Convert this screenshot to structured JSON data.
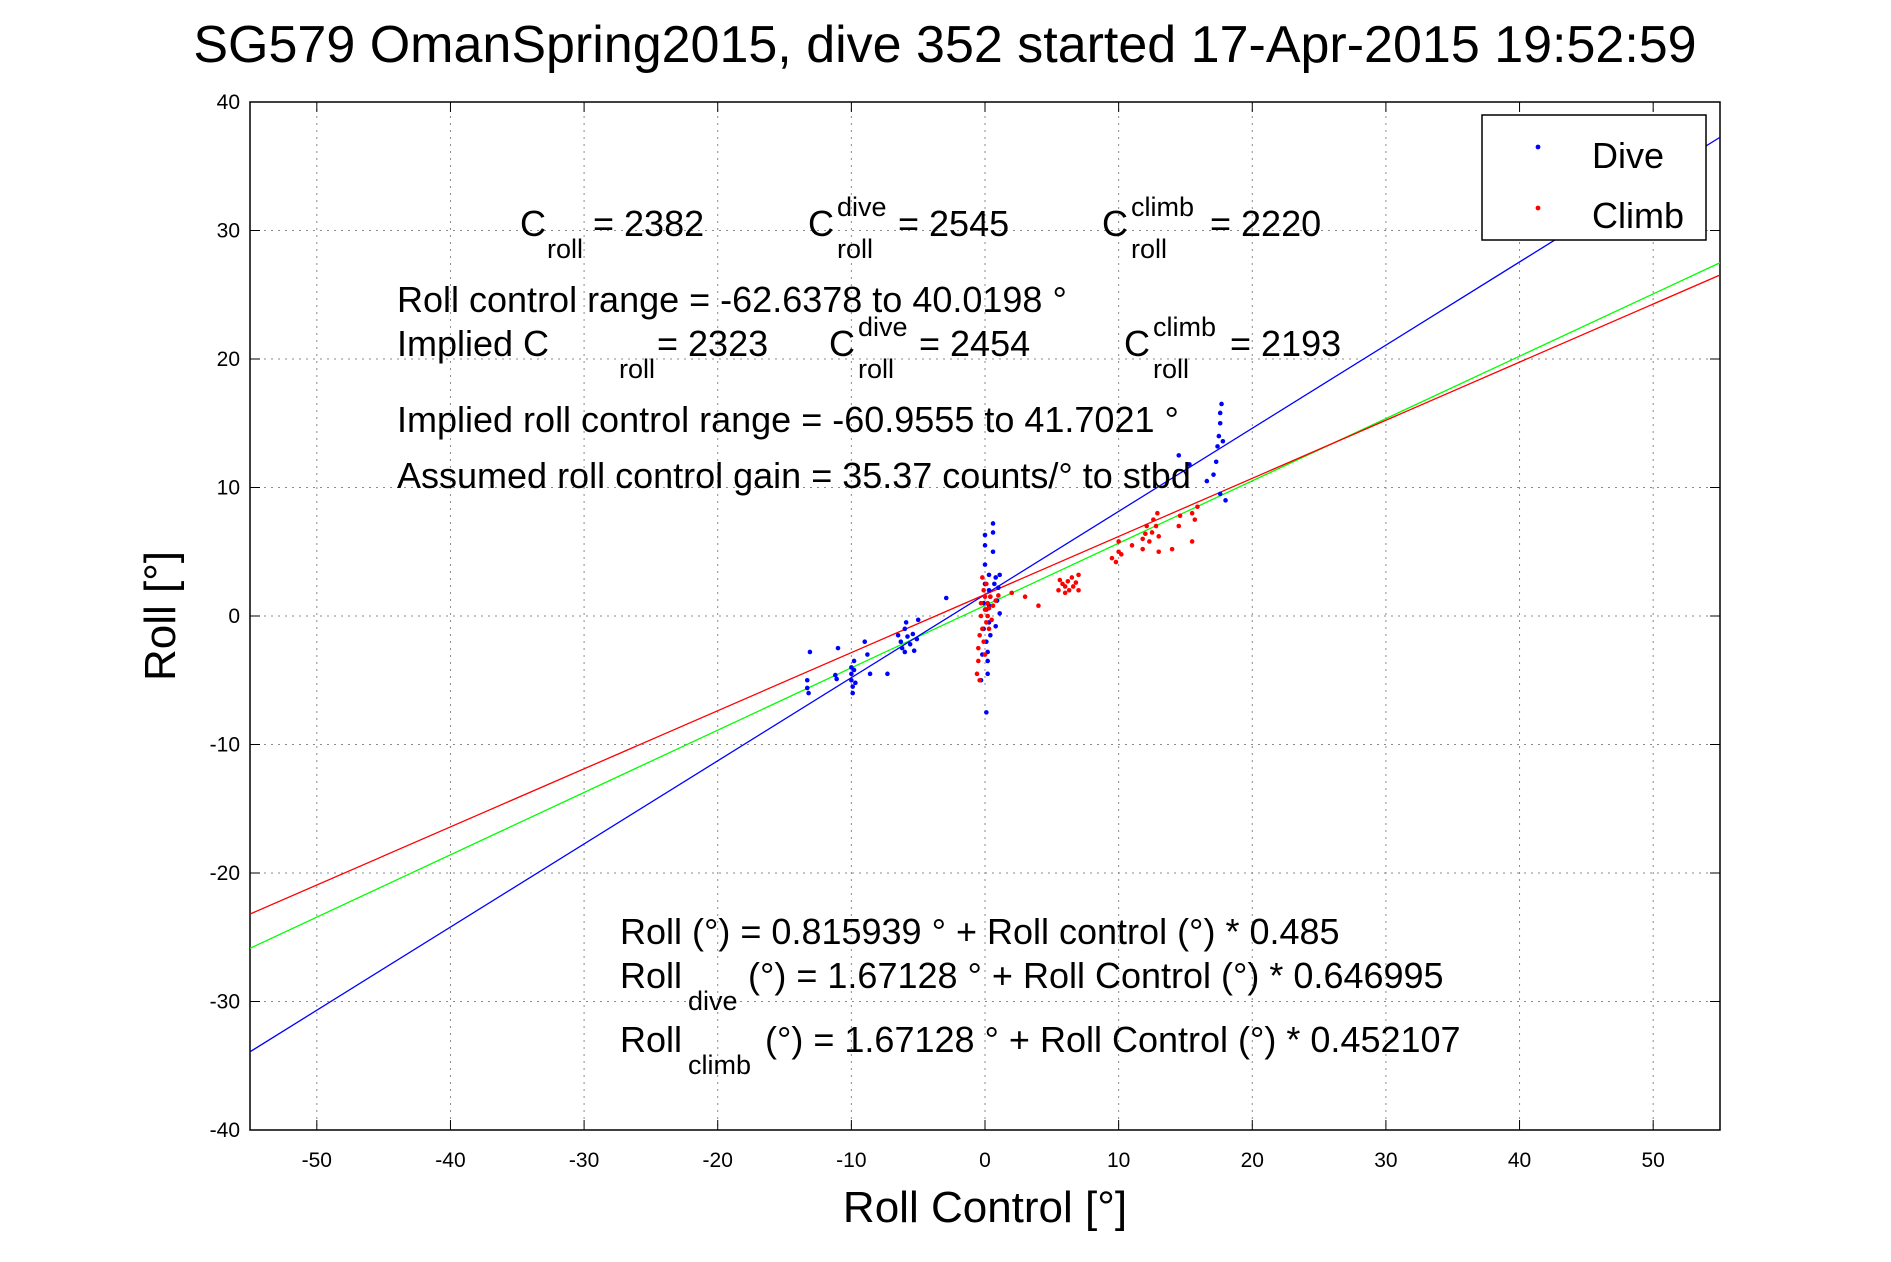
{
  "chart_data": {
    "type": "scatter",
    "title": "SG579 OmanSpring2015, dive 352 started 17-Apr-2015 19:52:59",
    "xlabel": "Roll Control [°]",
    "ylabel": "Roll [°]",
    "xlim": [
      -55,
      55
    ],
    "ylim": [
      -40,
      40
    ],
    "xticks": [
      -50,
      -40,
      -30,
      -20,
      -10,
      0,
      10,
      20,
      30,
      40,
      50
    ],
    "yticks": [
      -40,
      -30,
      -20,
      -10,
      0,
      10,
      20,
      30,
      40
    ],
    "grid": true,
    "legend_position": "top-right",
    "legend": [
      {
        "name": "Dive",
        "color": "#0000ff"
      },
      {
        "name": "Climb",
        "color": "#ff0000"
      }
    ],
    "annotations": {
      "c_roll": {
        "base": "C",
        "sub": "roll",
        "value": " = 2382"
      },
      "c_roll_dive": {
        "base": "C",
        "sup": "dive",
        "sub": "roll",
        "value": " = 2545"
      },
      "c_roll_climb": {
        "base": "C",
        "sup": "climb",
        "sub": "roll",
        "value": " = 2220"
      },
      "roll_control_range": "Roll control range = -62.6378 to 40.0198 °",
      "implied_prefix": "Implied C",
      "implied_sub": "roll",
      "implied_value": " = 2323",
      "implied_dive": {
        "base": "C",
        "sup": "dive",
        "sub": "roll",
        "value": " = 2454"
      },
      "implied_climb": {
        "base": "C",
        "sup": "climb",
        "sub": "roll",
        "value": " = 2193"
      },
      "implied_range": "Implied roll control range = -60.9555 to 41.7021 °",
      "gain": "Assumed roll control gain = 35.37 counts/° to stbd",
      "fit_all": "Roll (°) = 0.815939 ° + Roll control (°) * 0.485",
      "fit_dive_prefix": "Roll",
      "fit_dive_sub": "dive",
      "fit_dive_rest": " (°) = 1.67128 ° + Roll Control (°) * 0.646995",
      "fit_climb_prefix": "Roll",
      "fit_climb_sub": "climb",
      "fit_climb_rest": " (°) = 1.67128 ° + Roll Control (°) * 0.452107"
    },
    "fit_lines": [
      {
        "color": "#00ff00",
        "intercept": 0.815939,
        "slope": 0.485
      },
      {
        "color": "#0000ff",
        "intercept": 1.67128,
        "slope": 0.646995
      },
      {
        "color": "#ff0000",
        "intercept": 1.67128,
        "slope": 0.452107
      }
    ],
    "series": [
      {
        "name": "Dive",
        "color": "#0000ff",
        "points": [
          [
            -13.3,
            -5.0
          ],
          [
            -13.3,
            -5.6
          ],
          [
            -13.2,
            -6.0
          ],
          [
            -13.1,
            -2.8
          ],
          [
            -11.2,
            -4.6
          ],
          [
            -11.1,
            -4.9
          ],
          [
            -11.0,
            -2.5
          ],
          [
            -10.0,
            -4.0
          ],
          [
            -10.0,
            -4.5
          ],
          [
            -10.0,
            -5.0
          ],
          [
            -9.9,
            -5.5
          ],
          [
            -9.9,
            -6.0
          ],
          [
            -9.8,
            -3.5
          ],
          [
            -9.8,
            -4.2
          ],
          [
            -9.7,
            -5.2
          ],
          [
            -9.0,
            -2.0
          ],
          [
            -8.8,
            -3.0
          ],
          [
            -8.6,
            -4.5
          ],
          [
            -7.3,
            -4.5
          ],
          [
            -6.5,
            -1.5
          ],
          [
            -6.3,
            -2.0
          ],
          [
            -6.2,
            -2.5
          ],
          [
            -6.0,
            -1.0
          ],
          [
            -6.0,
            -2.8
          ],
          [
            -5.9,
            -0.5
          ],
          [
            -5.8,
            -1.6
          ],
          [
            -5.6,
            -2.2
          ],
          [
            -5.4,
            -1.4
          ],
          [
            -5.3,
            -2.7
          ],
          [
            -5.1,
            -1.8
          ],
          [
            -5.0,
            -0.3
          ],
          [
            -2.9,
            1.4
          ],
          [
            -0.3,
            -5.0
          ],
          [
            -0.2,
            -3.0
          ],
          [
            -0.1,
            -1.0
          ],
          [
            -0.1,
            1.0
          ],
          [
            0.0,
            2.5
          ],
          [
            0.0,
            4.0
          ],
          [
            0.0,
            5.5
          ],
          [
            0.0,
            6.3
          ],
          [
            0.1,
            -2.0
          ],
          [
            0.1,
            0.5
          ],
          [
            0.1,
            -7.5
          ],
          [
            0.2,
            -3.5
          ],
          [
            0.2,
            -4.5
          ],
          [
            0.2,
            -2.8
          ],
          [
            0.3,
            -0.5
          ],
          [
            0.3,
            0.8
          ],
          [
            0.3,
            2.0
          ],
          [
            0.3,
            3.2
          ],
          [
            0.4,
            1.5
          ],
          [
            0.4,
            -1.5
          ],
          [
            0.6,
            5.0
          ],
          [
            0.6,
            6.5
          ],
          [
            0.6,
            7.2
          ],
          [
            0.7,
            2.5
          ],
          [
            0.8,
            3.0
          ],
          [
            0.8,
            -0.8
          ],
          [
            0.9,
            1.2
          ],
          [
            1.0,
            2.2
          ],
          [
            1.1,
            3.2
          ],
          [
            1.1,
            0.2
          ],
          [
            14.5,
            12.5
          ],
          [
            15.3,
            11.8
          ],
          [
            16.6,
            10.5
          ],
          [
            17.1,
            11.0
          ],
          [
            17.3,
            12.0
          ],
          [
            17.4,
            13.2
          ],
          [
            17.5,
            14.0
          ],
          [
            17.6,
            15.0
          ],
          [
            17.6,
            15.8
          ],
          [
            17.7,
            16.5
          ],
          [
            17.8,
            13.6
          ],
          [
            18.0,
            9.0
          ],
          [
            17.6,
            9.5
          ]
        ]
      },
      {
        "name": "Climb",
        "color": "#ff0000",
        "points": [
          [
            -0.6,
            -4.5
          ],
          [
            -0.5,
            -3.5
          ],
          [
            -0.5,
            -2.5
          ],
          [
            -0.4,
            -5.0
          ],
          [
            -0.4,
            -1.5
          ],
          [
            -0.3,
            0.0
          ],
          [
            -0.3,
            1.0
          ],
          [
            -0.2,
            3.0
          ],
          [
            -0.2,
            -1.0
          ],
          [
            -0.1,
            2.0
          ],
          [
            -0.1,
            -2.0
          ],
          [
            0.0,
            0.5
          ],
          [
            0.0,
            -3.0
          ],
          [
            0.0,
            1.5
          ],
          [
            0.1,
            -0.5
          ],
          [
            0.1,
            2.5
          ],
          [
            0.2,
            0.0
          ],
          [
            0.2,
            1.0
          ],
          [
            0.3,
            -1.0
          ],
          [
            0.3,
            0.6
          ],
          [
            0.4,
            1.5
          ],
          [
            0.5,
            -0.3
          ],
          [
            0.6,
            0.8
          ],
          [
            0.8,
            1.2
          ],
          [
            1.0,
            1.6
          ],
          [
            2.0,
            1.8
          ],
          [
            3.0,
            1.5
          ],
          [
            4.0,
            0.8
          ],
          [
            5.5,
            2.0
          ],
          [
            5.6,
            2.8
          ],
          [
            5.8,
            2.5
          ],
          [
            6.0,
            1.8
          ],
          [
            6.0,
            2.3
          ],
          [
            6.2,
            2.7
          ],
          [
            6.3,
            2.0
          ],
          [
            6.5,
            3.0
          ],
          [
            6.6,
            2.3
          ],
          [
            6.8,
            2.6
          ],
          [
            7.0,
            3.2
          ],
          [
            7.0,
            2.0
          ],
          [
            9.5,
            4.5
          ],
          [
            9.8,
            4.2
          ],
          [
            10.0,
            5.0
          ],
          [
            10.0,
            5.8
          ],
          [
            10.2,
            4.8
          ],
          [
            11.0,
            5.5
          ],
          [
            11.8,
            5.2
          ],
          [
            11.8,
            6.0
          ],
          [
            12.0,
            6.4
          ],
          [
            12.1,
            7.0
          ],
          [
            12.3,
            5.8
          ],
          [
            12.5,
            6.5
          ],
          [
            12.6,
            7.5
          ],
          [
            12.8,
            7.0
          ],
          [
            12.9,
            8.0
          ],
          [
            13.0,
            6.2
          ],
          [
            13.0,
            5.0
          ],
          [
            14.0,
            5.2
          ],
          [
            14.5,
            7.0
          ],
          [
            14.6,
            7.8
          ],
          [
            15.5,
            5.8
          ],
          [
            15.5,
            8.0
          ],
          [
            15.7,
            7.5
          ],
          [
            15.9,
            8.5
          ]
        ]
      }
    ]
  }
}
